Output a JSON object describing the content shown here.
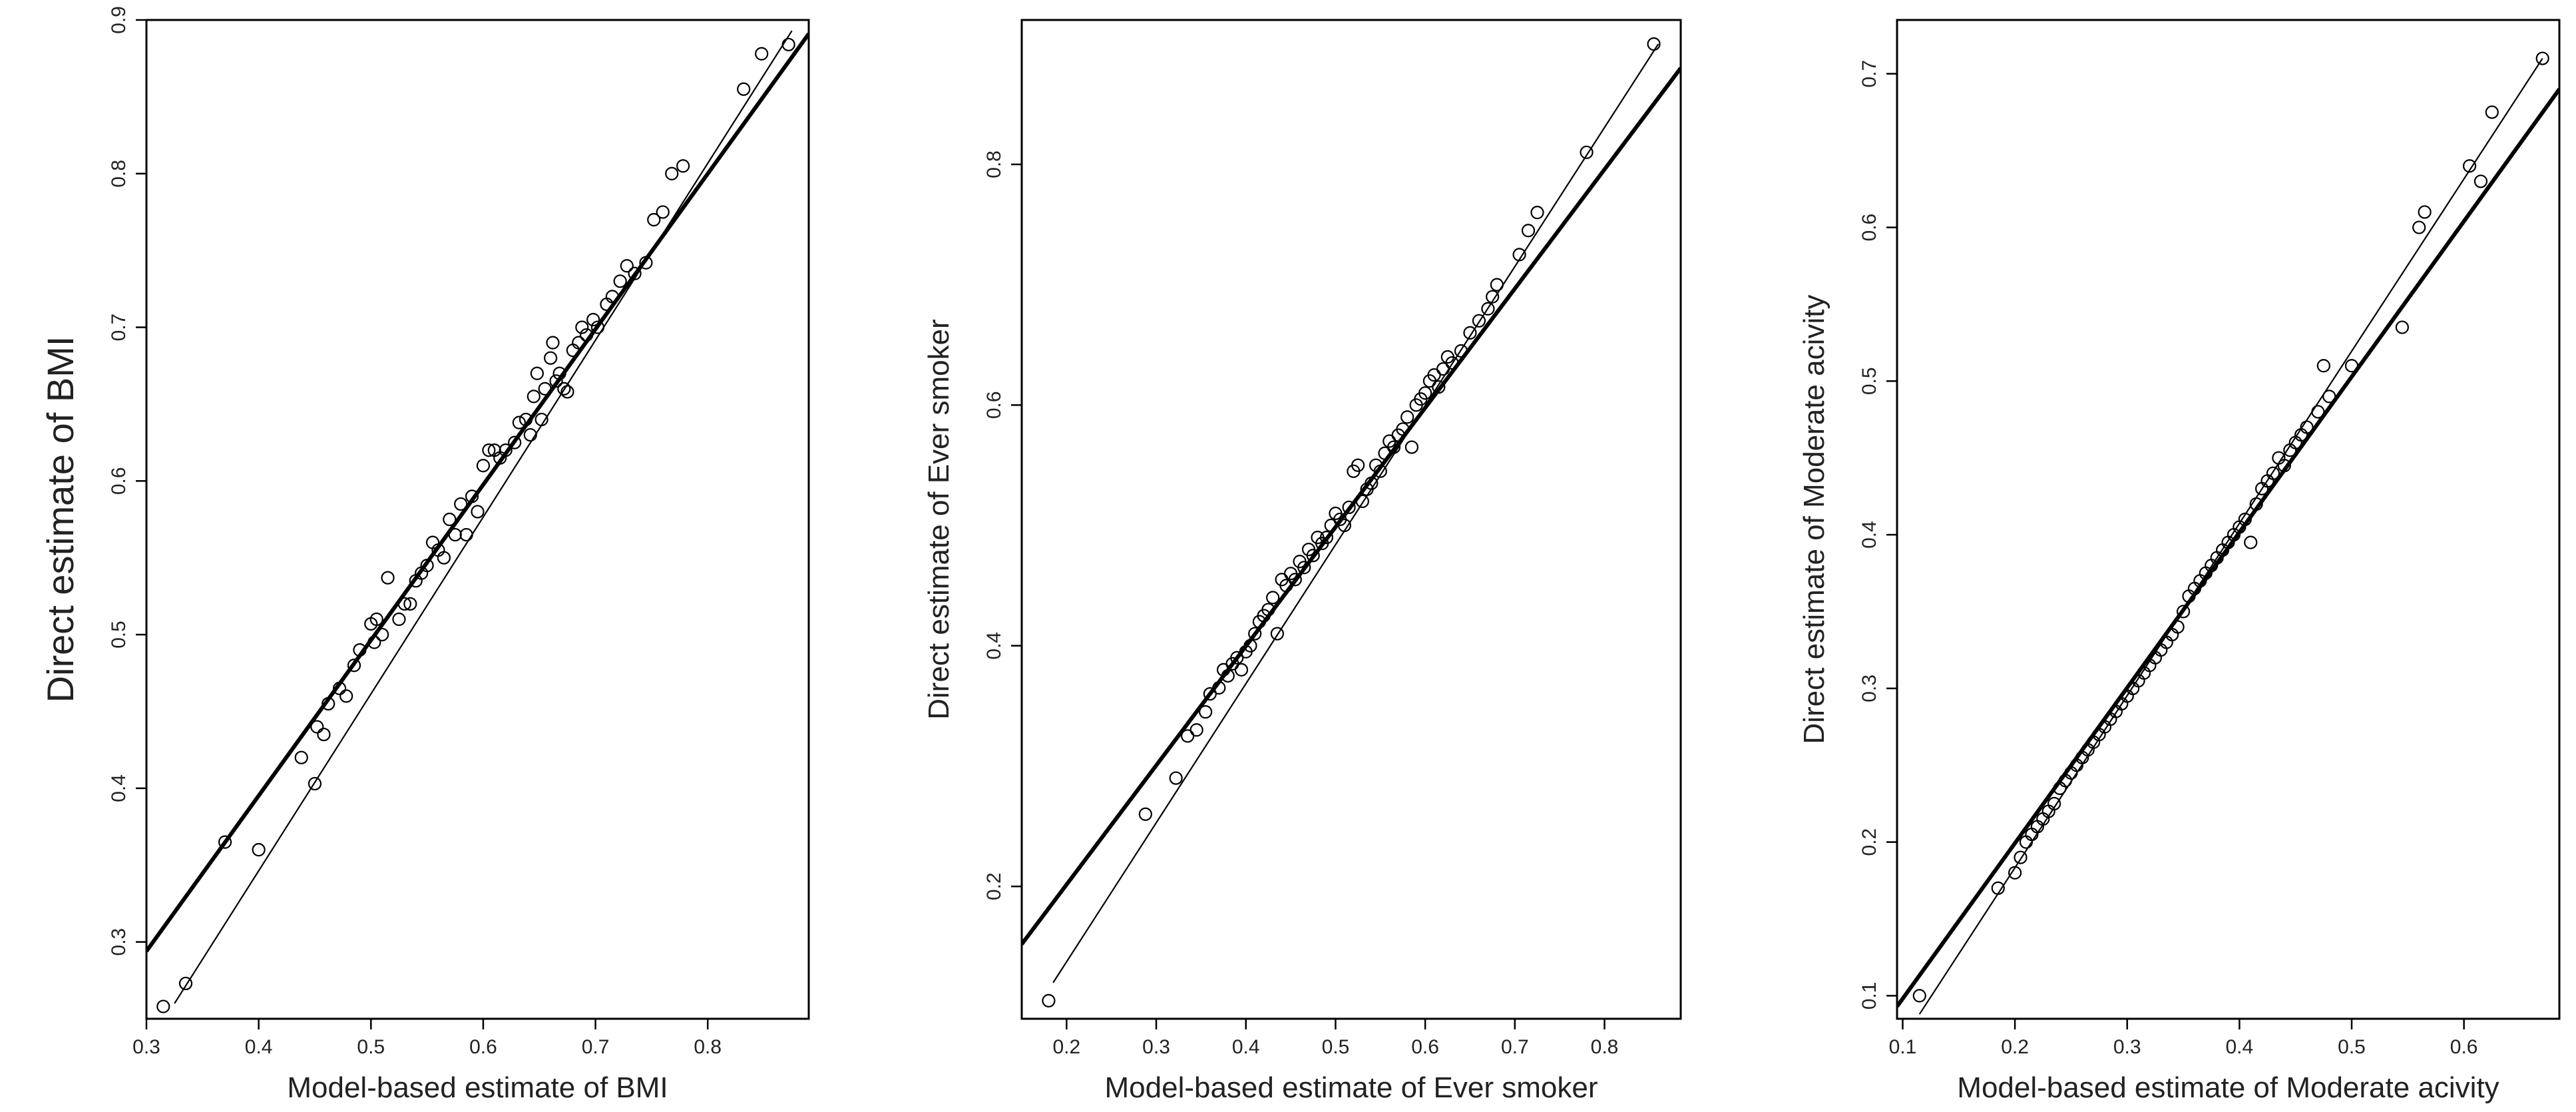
{
  "chart_data": [
    {
      "type": "scatter",
      "xlabel": "Model-based estimate of BMI",
      "ylabel": "Direct estimate of BMI",
      "xlim": [
        0.3,
        0.89
      ],
      "ylim": [
        0.25,
        0.9
      ],
      "xticks": [
        "0.3",
        "0.4",
        "0.5",
        "0.6",
        "0.7",
        "0.8"
      ],
      "yticks": [
        "0.3",
        "0.4",
        "0.5",
        "0.6",
        "0.7",
        "0.8",
        "0.9"
      ],
      "lines": {
        "bold": [
          [
            0.3,
            0.294
          ],
          [
            0.89,
            0.891
          ]
        ],
        "thin": [
          [
            0.325,
            0.26
          ],
          [
            0.875,
            0.893
          ]
        ]
      },
      "points": [
        [
          0.315,
          0.258
        ],
        [
          0.335,
          0.273
        ],
        [
          0.37,
          0.365
        ],
        [
          0.4,
          0.36
        ],
        [
          0.438,
          0.42
        ],
        [
          0.45,
          0.403
        ],
        [
          0.452,
          0.44
        ],
        [
          0.458,
          0.435
        ],
        [
          0.462,
          0.455
        ],
        [
          0.472,
          0.465
        ],
        [
          0.478,
          0.46
        ],
        [
          0.485,
          0.48
        ],
        [
          0.49,
          0.49
        ],
        [
          0.5,
          0.507
        ],
        [
          0.503,
          0.495
        ],
        [
          0.505,
          0.51
        ],
        [
          0.51,
          0.5
        ],
        [
          0.515,
          0.537
        ],
        [
          0.525,
          0.51
        ],
        [
          0.53,
          0.52
        ],
        [
          0.535,
          0.52
        ],
        [
          0.54,
          0.535
        ],
        [
          0.545,
          0.54
        ],
        [
          0.55,
          0.545
        ],
        [
          0.555,
          0.56
        ],
        [
          0.56,
          0.555
        ],
        [
          0.565,
          0.55
        ],
        [
          0.57,
          0.575
        ],
        [
          0.575,
          0.565
        ],
        [
          0.58,
          0.585
        ],
        [
          0.585,
          0.565
        ],
        [
          0.59,
          0.59
        ],
        [
          0.595,
          0.58
        ],
        [
          0.6,
          0.61
        ],
        [
          0.605,
          0.62
        ],
        [
          0.61,
          0.62
        ],
        [
          0.615,
          0.615
        ],
        [
          0.62,
          0.62
        ],
        [
          0.628,
          0.625
        ],
        [
          0.632,
          0.638
        ],
        [
          0.638,
          0.64
        ],
        [
          0.642,
          0.63
        ],
        [
          0.645,
          0.655
        ],
        [
          0.648,
          0.67
        ],
        [
          0.652,
          0.64
        ],
        [
          0.655,
          0.66
        ],
        [
          0.66,
          0.68
        ],
        [
          0.662,
          0.69
        ],
        [
          0.665,
          0.665
        ],
        [
          0.668,
          0.67
        ],
        [
          0.672,
          0.66
        ],
        [
          0.675,
          0.658
        ],
        [
          0.68,
          0.685
        ],
        [
          0.685,
          0.69
        ],
        [
          0.688,
          0.7
        ],
        [
          0.692,
          0.695
        ],
        [
          0.698,
          0.705
        ],
        [
          0.702,
          0.7
        ],
        [
          0.71,
          0.715
        ],
        [
          0.715,
          0.72
        ],
        [
          0.722,
          0.73
        ],
        [
          0.728,
          0.74
        ],
        [
          0.735,
          0.735
        ],
        [
          0.745,
          0.742
        ],
        [
          0.752,
          0.77
        ],
        [
          0.76,
          0.775
        ],
        [
          0.768,
          0.8
        ],
        [
          0.778,
          0.805
        ],
        [
          0.832,
          0.855
        ],
        [
          0.848,
          0.878
        ],
        [
          0.872,
          0.884
        ]
      ]
    },
    {
      "type": "scatter",
      "xlabel": "Model-based estimate of Ever smoker",
      "ylabel": "Direct estimate of Ever smoker",
      "xlim": [
        0.15,
        0.885
      ],
      "ylim": [
        0.09,
        0.92
      ],
      "xticks": [
        "0.2",
        "0.3",
        "0.4",
        "0.5",
        "0.6",
        "0.7",
        "0.8"
      ],
      "yticks": [
        "0.2",
        "0.4",
        "0.6",
        "0.8"
      ],
      "lines": {
        "bold": [
          [
            0.15,
            0.152
          ],
          [
            0.885,
            0.88
          ]
        ],
        "thin": [
          [
            0.185,
            0.12
          ],
          [
            0.86,
            0.9
          ]
        ]
      },
      "points": [
        [
          0.18,
          0.105
        ],
        [
          0.288,
          0.26
        ],
        [
          0.322,
          0.29
        ],
        [
          0.335,
          0.325
        ],
        [
          0.345,
          0.33
        ],
        [
          0.355,
          0.345
        ],
        [
          0.36,
          0.36
        ],
        [
          0.37,
          0.365
        ],
        [
          0.375,
          0.38
        ],
        [
          0.38,
          0.375
        ],
        [
          0.385,
          0.385
        ],
        [
          0.39,
          0.39
        ],
        [
          0.395,
          0.38
        ],
        [
          0.4,
          0.395
        ],
        [
          0.405,
          0.4
        ],
        [
          0.41,
          0.41
        ],
        [
          0.415,
          0.42
        ],
        [
          0.42,
          0.425
        ],
        [
          0.425,
          0.43
        ],
        [
          0.43,
          0.44
        ],
        [
          0.435,
          0.41
        ],
        [
          0.44,
          0.455
        ],
        [
          0.445,
          0.45
        ],
        [
          0.45,
          0.46
        ],
        [
          0.455,
          0.455
        ],
        [
          0.46,
          0.47
        ],
        [
          0.465,
          0.465
        ],
        [
          0.47,
          0.48
        ],
        [
          0.475,
          0.475
        ],
        [
          0.48,
          0.49
        ],
        [
          0.485,
          0.485
        ],
        [
          0.49,
          0.49
        ],
        [
          0.495,
          0.5
        ],
        [
          0.5,
          0.51
        ],
        [
          0.505,
          0.505
        ],
        [
          0.51,
          0.5
        ],
        [
          0.515,
          0.515
        ],
        [
          0.52,
          0.545
        ],
        [
          0.525,
          0.55
        ],
        [
          0.53,
          0.52
        ],
        [
          0.535,
          0.53
        ],
        [
          0.54,
          0.535
        ],
        [
          0.545,
          0.55
        ],
        [
          0.55,
          0.545
        ],
        [
          0.555,
          0.56
        ],
        [
          0.56,
          0.57
        ],
        [
          0.565,
          0.565
        ],
        [
          0.57,
          0.575
        ],
        [
          0.575,
          0.58
        ],
        [
          0.58,
          0.59
        ],
        [
          0.585,
          0.565
        ],
        [
          0.59,
          0.6
        ],
        [
          0.595,
          0.605
        ],
        [
          0.6,
          0.61
        ],
        [
          0.605,
          0.62
        ],
        [
          0.61,
          0.625
        ],
        [
          0.615,
          0.615
        ],
        [
          0.62,
          0.63
        ],
        [
          0.625,
          0.64
        ],
        [
          0.63,
          0.635
        ],
        [
          0.64,
          0.645
        ],
        [
          0.65,
          0.66
        ],
        [
          0.66,
          0.67
        ],
        [
          0.67,
          0.68
        ],
        [
          0.675,
          0.69
        ],
        [
          0.68,
          0.7
        ],
        [
          0.705,
          0.725
        ],
        [
          0.715,
          0.745
        ],
        [
          0.725,
          0.76
        ],
        [
          0.78,
          0.81
        ],
        [
          0.855,
          0.9
        ]
      ]
    },
    {
      "type": "scatter",
      "xlabel": "Model-based estimate of Moderate acivity",
      "ylabel": "Direct estimate of Moderate acivity",
      "xlim": [
        0.095,
        0.685
      ],
      "ylim": [
        0.085,
        0.735
      ],
      "xticks": [
        "0.1",
        "0.2",
        "0.3",
        "0.4",
        "0.5",
        "0.6"
      ],
      "yticks": [
        "0.1",
        "0.2",
        "0.3",
        "0.4",
        "0.5",
        "0.6",
        "0.7"
      ],
      "lines": {
        "bold": [
          [
            0.095,
            0.093
          ],
          [
            0.685,
            0.69
          ]
        ],
        "thin": [
          [
            0.115,
            0.088
          ],
          [
            0.67,
            0.71
          ]
        ]
      },
      "points": [
        [
          0.115,
          0.1
        ],
        [
          0.185,
          0.17
        ],
        [
          0.2,
          0.18
        ],
        [
          0.205,
          0.19
        ],
        [
          0.21,
          0.2
        ],
        [
          0.215,
          0.205
        ],
        [
          0.22,
          0.21
        ],
        [
          0.225,
          0.215
        ],
        [
          0.23,
          0.22
        ],
        [
          0.235,
          0.225
        ],
        [
          0.24,
          0.235
        ],
        [
          0.245,
          0.24
        ],
        [
          0.25,
          0.245
        ],
        [
          0.255,
          0.25
        ],
        [
          0.26,
          0.255
        ],
        [
          0.265,
          0.26
        ],
        [
          0.27,
          0.265
        ],
        [
          0.275,
          0.27
        ],
        [
          0.28,
          0.275
        ],
        [
          0.285,
          0.28
        ],
        [
          0.29,
          0.285
        ],
        [
          0.295,
          0.29
        ],
        [
          0.3,
          0.295
        ],
        [
          0.305,
          0.3
        ],
        [
          0.31,
          0.305
        ],
        [
          0.315,
          0.31
        ],
        [
          0.32,
          0.315
        ],
        [
          0.325,
          0.32
        ],
        [
          0.33,
          0.325
        ],
        [
          0.335,
          0.33
        ],
        [
          0.34,
          0.335
        ],
        [
          0.345,
          0.34
        ],
        [
          0.35,
          0.35
        ],
        [
          0.355,
          0.36
        ],
        [
          0.36,
          0.365
        ],
        [
          0.365,
          0.37
        ],
        [
          0.37,
          0.375
        ],
        [
          0.375,
          0.38
        ],
        [
          0.38,
          0.385
        ],
        [
          0.385,
          0.39
        ],
        [
          0.39,
          0.395
        ],
        [
          0.395,
          0.4
        ],
        [
          0.4,
          0.405
        ],
        [
          0.405,
          0.41
        ],
        [
          0.41,
          0.395
        ],
        [
          0.415,
          0.42
        ],
        [
          0.42,
          0.43
        ],
        [
          0.425,
          0.435
        ],
        [
          0.43,
          0.44
        ],
        [
          0.435,
          0.45
        ],
        [
          0.44,
          0.445
        ],
        [
          0.445,
          0.455
        ],
        [
          0.45,
          0.46
        ],
        [
          0.455,
          0.465
        ],
        [
          0.46,
          0.47
        ],
        [
          0.47,
          0.48
        ],
        [
          0.475,
          0.51
        ],
        [
          0.48,
          0.49
        ],
        [
          0.5,
          0.51
        ],
        [
          0.545,
          0.535
        ],
        [
          0.56,
          0.6
        ],
        [
          0.565,
          0.61
        ],
        [
          0.605,
          0.64
        ],
        [
          0.615,
          0.63
        ],
        [
          0.625,
          0.675
        ],
        [
          0.67,
          0.71
        ]
      ]
    }
  ]
}
